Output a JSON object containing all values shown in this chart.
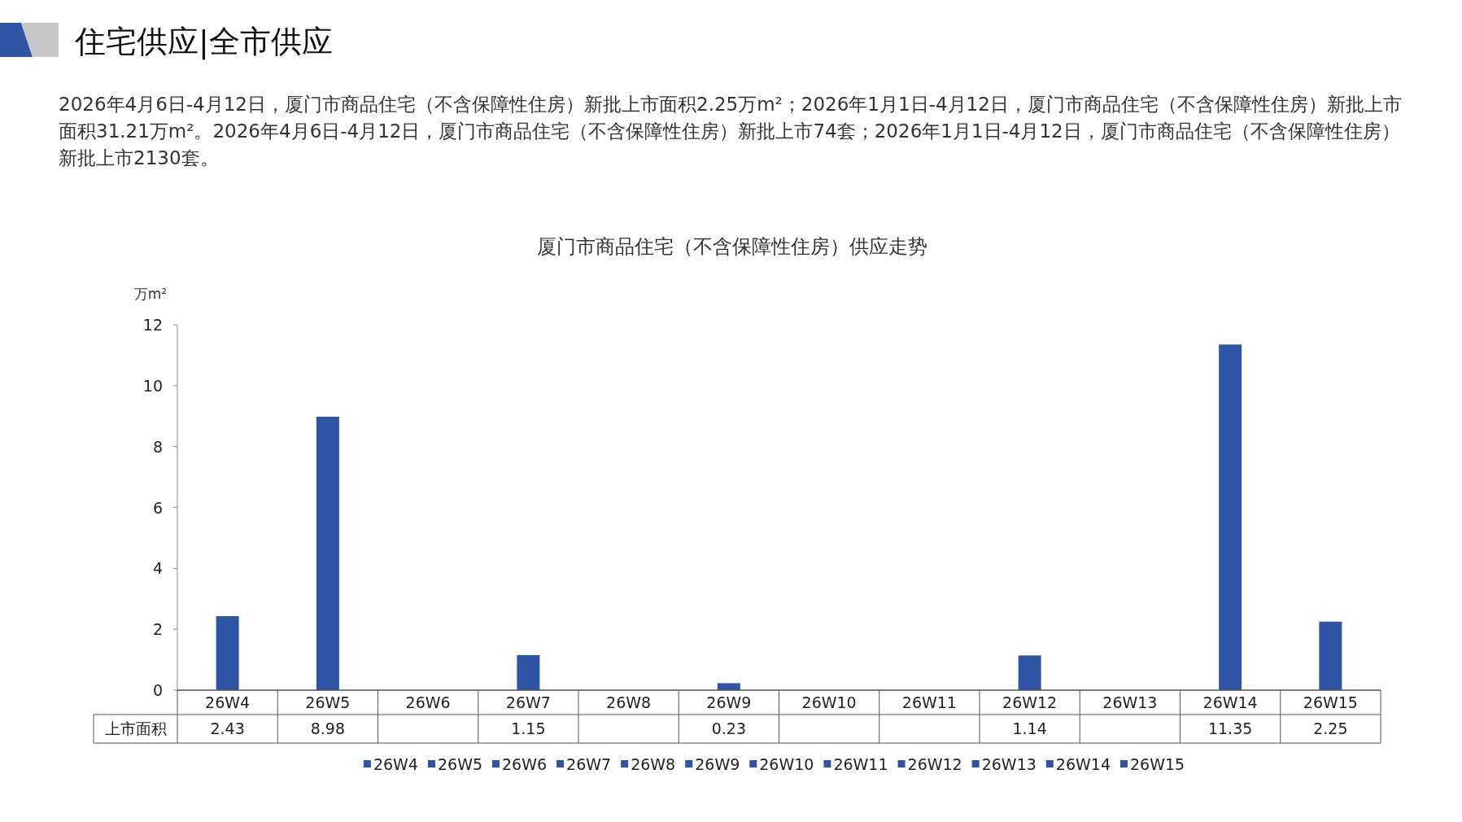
{
  "chart_data": {
    "type": "bar",
    "title": "厦门市商品住宅（不含保障性住房）供应走势",
    "ylabel": "万m²",
    "annotations": [
      "住宅供应|全市供应",
      "2026年4月6日-4月12日，厦门市商品住宅（不含保障性住房）新批上市面积2.25万m²；2026年1月1日-4月12日，厦门市商品住宅（不含保障性住房）新批上市面积31.21万m²。2026年4月6日-4月12日，厦门市商品住宅（不含保障性住房）新批上市74套；2026年1月1日-4月12日，厦门市商品住宅（不含保障性住房）新批上市2130套。"
    ],
    "categories": [
      "26W4",
      "26W5",
      "26W6",
      "26W7",
      "26W8",
      "26W9",
      "26W10",
      "26W11",
      "26W12",
      "26W13",
      "26W14",
      "26W15"
    ],
    "series": [
      {
        "name": "上市面积",
        "color": "#2e55a5",
        "values": [
          2.43,
          8.98,
          null,
          1.15,
          null,
          0.23,
          null,
          null,
          1.14,
          null,
          11.35,
          2.25
        ]
      }
    ],
    "ylim": [
      0,
      12
    ],
    "yticks": [
      0,
      2,
      4,
      6,
      8,
      10,
      12
    ],
    "data_labels": true,
    "legend": "bottom"
  }
}
